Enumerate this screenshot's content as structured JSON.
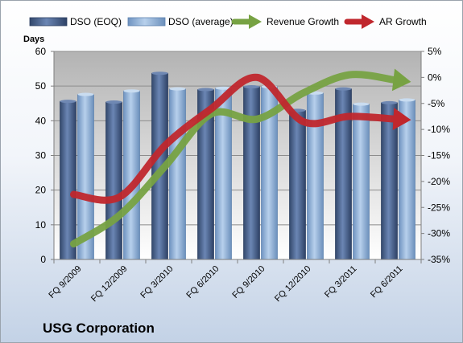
{
  "company": "USG Corporation",
  "chart_data": {
    "type": "bar",
    "categories": [
      "FQ 9/2009",
      "FQ 12/2009",
      "FQ 3/2010",
      "FQ 6/2010",
      "FQ 9/2010",
      "FQ 12/2010",
      "FQ 3/2011",
      "FQ 6/2011"
    ],
    "ylabel": "Days",
    "ylim": [
      0,
      60
    ],
    "yticks": [
      0,
      10,
      20,
      30,
      40,
      50,
      60
    ],
    "y2lim": [
      -35,
      5
    ],
    "y2ticks": [
      "5%",
      "0%",
      "-5%",
      "-10%",
      "-15%",
      "-20%",
      "-25%",
      "-30%",
      "-35%"
    ],
    "y2values": [
      5,
      0,
      -5,
      -10,
      -15,
      -20,
      -25,
      -30,
      -35
    ],
    "grid": true,
    "legend_position": "top",
    "series": [
      {
        "name": "DSO (EOQ)",
        "type": "bar",
        "axis": "left",
        "color": "#4a6591",
        "values": [
          45.6,
          45.4,
          53.7,
          49.0,
          49.8,
          43.0,
          49.2,
          45.2
        ]
      },
      {
        "name": "DSO (average)",
        "type": "bar",
        "axis": "left",
        "color": "#8fb2d9",
        "values": [
          47.6,
          48.6,
          49.2,
          49.4,
          49.8,
          48.0,
          44.8,
          46.0
        ]
      },
      {
        "name": "Revenue Growth",
        "type": "line",
        "axis": "right",
        "color": "#77a243",
        "values": [
          -32.0,
          -26.5,
          -17.0,
          -7.0,
          -8.0,
          -3.0,
          0.5,
          -0.5
        ]
      },
      {
        "name": "AR Growth",
        "type": "line",
        "axis": "right",
        "color": "#c0272d",
        "values": [
          -22.5,
          -23.0,
          -13.0,
          -6.0,
          0.0,
          -8.5,
          -7.5,
          -8.0
        ]
      }
    ]
  }
}
